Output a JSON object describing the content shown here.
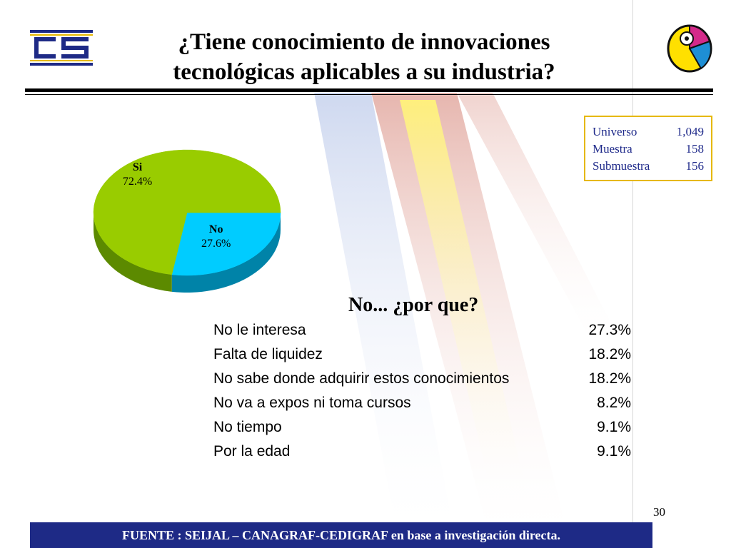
{
  "title": {
    "line1": "¿Tiene conocimiento de innovaciones",
    "line2": "tecnológicas aplicables a su industria?"
  },
  "info_box": {
    "rows": [
      {
        "label": "Universo",
        "value": "1,049"
      },
      {
        "label": "Muestra",
        "value": "158"
      },
      {
        "label": "Submuestra",
        "value": "156"
      }
    ]
  },
  "chart_data": [
    {
      "type": "pie",
      "title": "",
      "labels": [
        "Si",
        "No"
      ],
      "values": [
        72.4,
        27.6
      ],
      "data_labels": [
        "72.4%",
        "27.6%"
      ],
      "colors": [
        "#99cc00",
        "#00ccff"
      ],
      "side_colors": [
        "#5c8a00",
        "#0083a8"
      ]
    },
    {
      "type": "table",
      "title": "No... ¿por que?",
      "rows": [
        {
          "label": "No le interesa",
          "value": "27.3%"
        },
        {
          "label": "Falta de liquidez",
          "value": "18.2%"
        },
        {
          "label": "No sabe donde adquirir estos conocimientos",
          "value": "18.2%"
        },
        {
          "label": "No va a expos ni toma cursos",
          "value": "8.2%"
        },
        {
          "label": "No tiempo",
          "value": "9.1%"
        },
        {
          "label": "Por la edad",
          "value": "9.1%"
        }
      ]
    }
  ],
  "page_number": "30",
  "footer": {
    "source": "FUENTE :  SEIJAL – CANAGRAF-CEDIGRAF en base a investigación directa."
  },
  "colors": {
    "footer_bg": "#1e2a86",
    "info_text": "#1f2a8a",
    "info_border": "#e6b800"
  }
}
